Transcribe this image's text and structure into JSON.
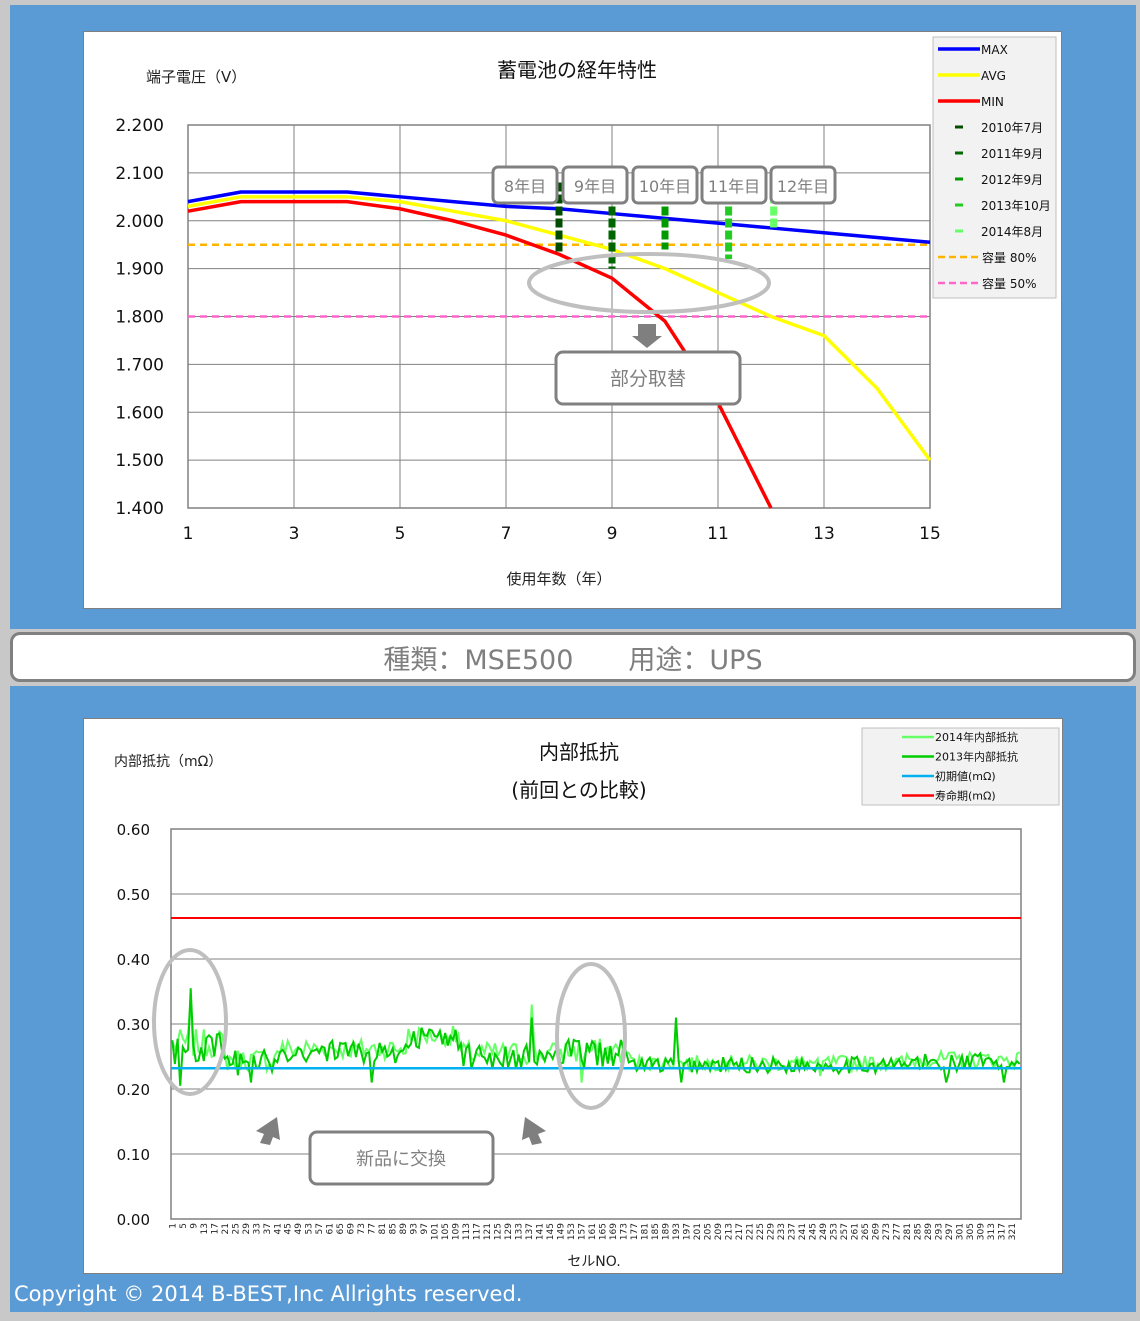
{
  "banner": {
    "type_text": "種類：MSE500",
    "use_text": "用途：UPS"
  },
  "copyright": "Copyright © 2014 B-BEST,Inc Allrights reserved.",
  "colors": {
    "panel": "#5b9bd5",
    "max": "#0000ff",
    "avg": "#ffff00",
    "min": "#ff0000",
    "cap80": "#ffb400",
    "cap50": "#ff66cc",
    "initial": "#00b0f0",
    "life": "#ff0000",
    "res2014": "#66ff66",
    "res2013": "#00cc00"
  },
  "chart_data": [
    {
      "type": "line",
      "title": "蓄電池の経年特性",
      "ylabel": "端子電圧（V）",
      "xlabel": "使用年数（年）",
      "xlim": [
        1,
        15
      ],
      "ylim": [
        1.4,
        2.2
      ],
      "x_ticks": [
        "1",
        "3",
        "5",
        "7",
        "9",
        "11",
        "13",
        "15"
      ],
      "y_ticks": [
        "1.400",
        "1.500",
        "1.600",
        "1.700",
        "1.800",
        "1.900",
        "2.000",
        "2.100",
        "2.200"
      ],
      "grid": true,
      "legend_position": "top-right",
      "series": [
        {
          "name": "MAX",
          "x": [
            1,
            2,
            3,
            4,
            5,
            6,
            7,
            8,
            9,
            10,
            11,
            12,
            13,
            14,
            15
          ],
          "values": [
            2.04,
            2.06,
            2.06,
            2.06,
            2.05,
            2.04,
            2.03,
            2.025,
            2.015,
            2.005,
            1.995,
            1.985,
            1.975,
            1.965,
            1.955
          ]
        },
        {
          "name": "AVG",
          "x": [
            1,
            2,
            3,
            4,
            5,
            6,
            7,
            8,
            9,
            10,
            11,
            12,
            13,
            14,
            15
          ],
          "values": [
            2.03,
            2.05,
            2.05,
            2.05,
            2.04,
            2.02,
            2.0,
            1.97,
            1.94,
            1.9,
            1.85,
            1.8,
            1.76,
            1.65,
            1.5
          ]
        },
        {
          "name": "MIN",
          "x": [
            1,
            2,
            3,
            4,
            5,
            6,
            7,
            8,
            9,
            10,
            11,
            12
          ],
          "values": [
            2.02,
            2.04,
            2.04,
            2.04,
            2.025,
            2.0,
            1.97,
            1.93,
            1.88,
            1.79,
            1.62,
            1.4
          ]
        }
      ],
      "measurements": [
        {
          "name": "2010年7月",
          "year_label": "8年目",
          "x": 8,
          "values_top": 2.08,
          "values_bottom": 1.93
        },
        {
          "name": "2011年9月",
          "year_label": "9年目",
          "x": 9,
          "values_top": 2.08,
          "values_bottom": 1.9
        },
        {
          "name": "2012年9月",
          "year_label": "10年目",
          "x": 10,
          "values_top": 2.08,
          "values_bottom": 1.94
        },
        {
          "name": "2013年10月",
          "year_label": "11年目",
          "x": 11.2,
          "values_top": 2.08,
          "values_bottom": 1.92
        },
        {
          "name": "2014年8月",
          "year_label": "12年目",
          "x": 12.05,
          "values_top": 2.08,
          "values_bottom": 1.98
        }
      ],
      "reference_lines": [
        {
          "name": "容量 80%",
          "value": 1.95
        },
        {
          "name": "容量 50%",
          "value": 1.8
        }
      ],
      "annotation": "部分取替"
    },
    {
      "type": "line",
      "title": "内部抵抗",
      "subtitle": "(前回との比較)",
      "ylabel": "内部抵抗（mΩ）",
      "xlabel": "セルNO.",
      "ylim": [
        0,
        0.6
      ],
      "y_ticks": [
        "0.00",
        "0.10",
        "0.20",
        "0.30",
        "0.40",
        "0.50",
        "0.60"
      ],
      "x_ticks": [
        "1",
        "5",
        "9",
        "13",
        "17",
        "21",
        "25",
        "29",
        "33",
        "37",
        "41",
        "45",
        "49",
        "53",
        "57",
        "61",
        "65",
        "69",
        "73",
        "77",
        "81",
        "85",
        "89",
        "93",
        "97",
        "101",
        "105",
        "109",
        "113",
        "117",
        "121",
        "125",
        "129",
        "133",
        "137",
        "141",
        "145",
        "149",
        "153",
        "157",
        "161",
        "165",
        "169",
        "173",
        "177",
        "181",
        "185",
        "189",
        "193",
        "197",
        "201",
        "205",
        "209",
        "213",
        "217",
        "221",
        "225",
        "229",
        "233",
        "237",
        "241",
        "245",
        "249",
        "253",
        "257",
        "261",
        "265",
        "269",
        "273",
        "277",
        "281",
        "285",
        "289",
        "293",
        "297",
        "301",
        "305",
        "309",
        "313",
        "317",
        "321"
      ],
      "cell_count": 324,
      "grid": true,
      "legend_position": "top-right",
      "series": [
        {
          "name": "2014年内部抵抗",
          "segments": [
            {
              "from": 1,
              "to": 20,
              "mean": 0.27,
              "amp": 0.022
            },
            {
              "from": 21,
              "to": 40,
              "mean": 0.245,
              "amp": 0.018
            },
            {
              "from": 41,
              "to": 90,
              "mean": 0.262,
              "amp": 0.016
            },
            {
              "from": 91,
              "to": 110,
              "mean": 0.282,
              "amp": 0.015
            },
            {
              "from": 111,
              "to": 150,
              "mean": 0.255,
              "amp": 0.018
            },
            {
              "from": 151,
              "to": 175,
              "mean": 0.258,
              "amp": 0.02
            },
            {
              "from": 176,
              "to": 280,
              "mean": 0.24,
              "amp": 0.012
            },
            {
              "from": 281,
              "to": 324,
              "mean": 0.245,
              "amp": 0.013
            }
          ],
          "spikes": [
            {
              "x": 8,
              "value": 0.34
            },
            {
              "x": 138,
              "value": 0.33
            },
            {
              "x": 157,
              "value": 0.21
            },
            {
              "x": 193,
              "value": 0.3
            },
            {
              "x": 248,
              "value": 0.22
            }
          ]
        },
        {
          "name": "2013年内部抵抗",
          "segments": [
            {
              "from": 1,
              "to": 20,
              "mean": 0.262,
              "amp": 0.025
            },
            {
              "from": 21,
              "to": 40,
              "mean": 0.24,
              "amp": 0.02
            },
            {
              "from": 41,
              "to": 90,
              "mean": 0.258,
              "amp": 0.018
            },
            {
              "from": 91,
              "to": 110,
              "mean": 0.278,
              "amp": 0.017
            },
            {
              "from": 111,
              "to": 150,
              "mean": 0.25,
              "amp": 0.02
            },
            {
              "from": 151,
              "to": 175,
              "mean": 0.255,
              "amp": 0.022
            },
            {
              "from": 176,
              "to": 280,
              "mean": 0.237,
              "amp": 0.013
            },
            {
              "from": 281,
              "to": 324,
              "mean": 0.24,
              "amp": 0.015
            }
          ],
          "spikes": [
            {
              "x": 8,
              "value": 0.355
            },
            {
              "x": 4,
              "value": 0.205
            },
            {
              "x": 31,
              "value": 0.21
            },
            {
              "x": 77,
              "value": 0.21
            },
            {
              "x": 138,
              "value": 0.31
            },
            {
              "x": 193,
              "value": 0.31
            },
            {
              "x": 195,
              "value": 0.21
            },
            {
              "x": 296,
              "value": 0.21
            },
            {
              "x": 318,
              "value": 0.21
            }
          ]
        },
        {
          "name": "初期値(mΩ)",
          "value": 0.232
        },
        {
          "name": "寿命期(mΩ)",
          "value": 0.463
        }
      ],
      "annotation": "新品に交換"
    }
  ]
}
